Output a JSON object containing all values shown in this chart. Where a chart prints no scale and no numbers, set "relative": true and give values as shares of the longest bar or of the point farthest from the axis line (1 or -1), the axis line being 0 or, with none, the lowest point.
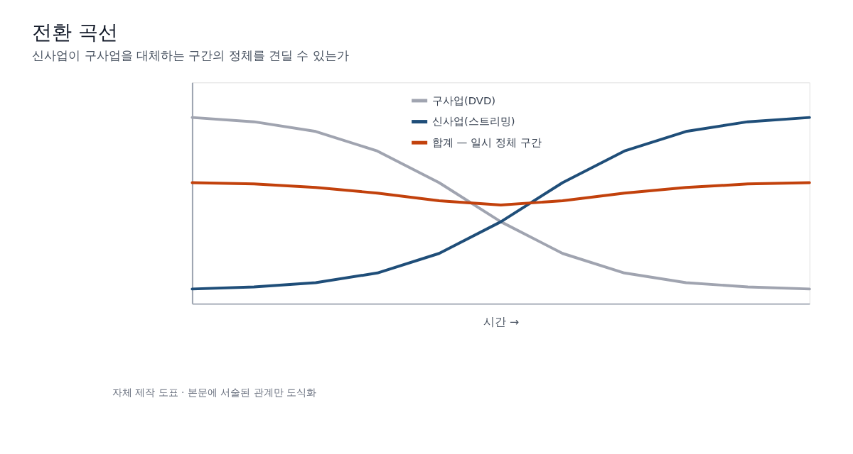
{
  "chart_data": {
    "type": "line",
    "title": "전환 곡선",
    "subtitle": "신사업이 구사업을 대체하는 구간의 정체를 견딜 수 있는가",
    "xlabel": "시간 →",
    "relative": true,
    "legend": "top",
    "grid": false,
    "marker": "none",
    "line_style": "solid",
    "categories": [
      null,
      null,
      null,
      null,
      null,
      null,
      null,
      null,
      null,
      null,
      null
    ],
    "series": [
      {
        "name": "구사업(DVD)",
        "color": "#a0a4b0",
        "values": [
          1.0,
          0.977,
          0.925,
          0.82,
          0.65,
          0.44,
          0.27,
          0.165,
          0.113,
          0.09,
          0.079
        ]
      },
      {
        "name": "신사업(스트리밍)",
        "color": "#1f4e79",
        "values": [
          0.079,
          0.09,
          0.113,
          0.165,
          0.27,
          0.44,
          0.65,
          0.82,
          0.925,
          0.977,
          1.0
        ]
      },
      {
        "name": "합계 — 일시 정체 구간",
        "color": "#c2410c",
        "values": [
          0.65,
          0.643,
          0.624,
          0.594,
          0.553,
          0.53,
          0.553,
          0.594,
          0.624,
          0.643,
          0.65
        ]
      }
    ],
    "annotations": [
      "자체 제작 도표 · 본문에 서술된 관계만 도식화"
    ]
  }
}
